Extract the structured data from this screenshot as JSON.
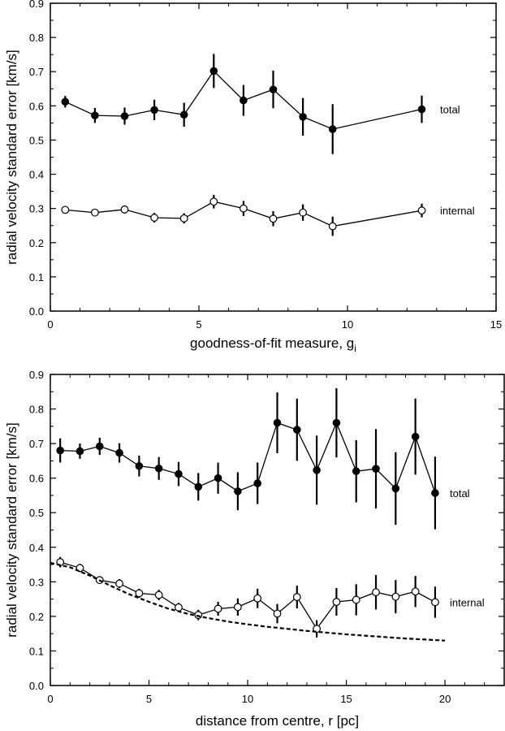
{
  "chart_data": [
    {
      "type": "scatter",
      "xlabel": "goodness-of-fit measure, g",
      "xlabel_sub": "i",
      "ylabel": "radial velocity standard error  [km/s]",
      "xlim": [
        0,
        15
      ],
      "ylim": [
        0,
        0.9
      ],
      "xticks": [
        0,
        5,
        10,
        15
      ],
      "yticks": [
        0,
        0.1,
        0.2,
        0.3,
        0.4,
        0.5,
        0.6,
        0.7,
        0.8,
        0.9
      ],
      "xtick_labels": [
        "0",
        "5",
        "10",
        "15"
      ],
      "ytick_labels": [
        "0.0",
        "0.1",
        "0.2",
        "0.3",
        "0.4",
        "0.5",
        "0.6",
        "0.7",
        "0.8",
        "0.9"
      ],
      "series": [
        {
          "name": "total",
          "marker": "filled",
          "x": [
            0.5,
            1.5,
            2.5,
            3.5,
            4.5,
            5.5,
            6.5,
            7.5,
            8.5,
            9.5,
            12.5
          ],
          "y": [
            0.612,
            0.572,
            0.57,
            0.588,
            0.574,
            0.702,
            0.616,
            0.648,
            0.568,
            0.532,
            0.59
          ],
          "err": [
            0.017,
            0.022,
            0.025,
            0.03,
            0.035,
            0.05,
            0.045,
            0.055,
            0.055,
            0.073,
            0.04
          ]
        },
        {
          "name": "internal",
          "marker": "open",
          "x": [
            0.5,
            1.5,
            2.5,
            3.5,
            4.5,
            5.5,
            6.5,
            7.5,
            8.5,
            9.5,
            12.5
          ],
          "y": [
            0.296,
            0.288,
            0.297,
            0.273,
            0.271,
            0.32,
            0.3,
            0.27,
            0.288,
            0.248,
            0.294
          ],
          "err": [
            0.006,
            0.008,
            0.012,
            0.014,
            0.015,
            0.02,
            0.022,
            0.022,
            0.024,
            0.028,
            0.02
          ]
        }
      ]
    },
    {
      "type": "scatter",
      "xlabel": "distance from centre, r  [pc]",
      "ylabel": "radial velocity standard error  [km/s]",
      "xlim": [
        0,
        23
      ],
      "ylim": [
        0,
        0.9
      ],
      "xticks": [
        0,
        5,
        10,
        15,
        20
      ],
      "yticks": [
        0,
        0.1,
        0.2,
        0.3,
        0.4,
        0.5,
        0.6,
        0.7,
        0.8,
        0.9
      ],
      "xtick_labels": [
        "0",
        "5",
        "10",
        "15",
        "20"
      ],
      "ytick_labels": [
        "0.0",
        "0.1",
        "0.2",
        "0.3",
        "0.4",
        "0.5",
        "0.6",
        "0.7",
        "0.8",
        "0.9"
      ],
      "series": [
        {
          "name": "total",
          "marker": "filled",
          "x": [
            0.5,
            1.5,
            2.5,
            3.5,
            4.5,
            5.5,
            6.5,
            7.5,
            8.5,
            9.5,
            10.5,
            11.5,
            12.5,
            13.5,
            14.5,
            15.5,
            16.5,
            17.5,
            18.5,
            19.5
          ],
          "y": [
            0.68,
            0.678,
            0.692,
            0.673,
            0.635,
            0.628,
            0.612,
            0.575,
            0.6,
            0.562,
            0.585,
            0.76,
            0.74,
            0.623,
            0.76,
            0.62,
            0.627,
            0.57,
            0.72,
            0.557
          ],
          "err": [
            0.035,
            0.022,
            0.025,
            0.028,
            0.03,
            0.033,
            0.035,
            0.04,
            0.045,
            0.055,
            0.06,
            0.088,
            0.09,
            0.1,
            0.1,
            0.09,
            0.115,
            0.105,
            0.11,
            0.105
          ]
        },
        {
          "name": "internal",
          "marker": "open",
          "x": [
            0.5,
            1.5,
            2.5,
            3.5,
            4.5,
            5.5,
            6.5,
            7.5,
            8.5,
            9.5,
            10.5,
            11.5,
            12.5,
            13.5,
            14.5,
            15.5,
            16.5,
            17.5,
            18.5,
            19.5
          ],
          "y": [
            0.357,
            0.34,
            0.305,
            0.295,
            0.267,
            0.262,
            0.226,
            0.204,
            0.222,
            0.227,
            0.252,
            0.208,
            0.256,
            0.164,
            0.242,
            0.248,
            0.27,
            0.257,
            0.272,
            0.241
          ],
          "err": [
            0.015,
            0.012,
            0.01,
            0.013,
            0.013,
            0.015,
            0.013,
            0.015,
            0.02,
            0.025,
            0.028,
            0.028,
            0.033,
            0.025,
            0.04,
            0.045,
            0.05,
            0.048,
            0.045,
            0.045
          ]
        },
        {
          "name": "",
          "style": "dashed",
          "x": [
            0,
            1,
            2,
            3,
            4,
            5,
            6,
            7,
            8,
            9,
            10,
            11,
            12,
            13,
            14,
            15,
            16,
            17,
            18,
            19,
            20
          ],
          "y": [
            0.355,
            0.342,
            0.318,
            0.29,
            0.264,
            0.242,
            0.222,
            0.207,
            0.195,
            0.185,
            0.177,
            0.17,
            0.164,
            0.158,
            0.153,
            0.148,
            0.144,
            0.14,
            0.136,
            0.133,
            0.13
          ]
        }
      ]
    }
  ]
}
